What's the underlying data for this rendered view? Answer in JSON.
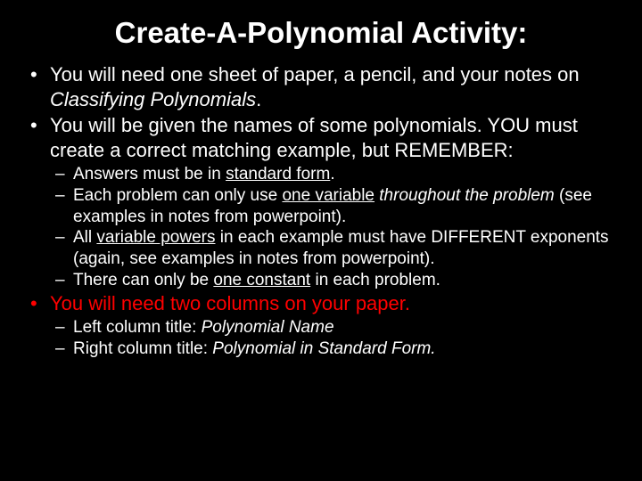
{
  "title": "Create-A-Polynomial Activity:",
  "bullets": {
    "b1_pre": "You will need one sheet of paper, a pencil, and your notes on ",
    "b1_italic": "Classifying Polynomials",
    "b1_post": ".",
    "b2": "You will be given the names of some polynomials. YOU must create a correct matching example, but REMEMBER:",
    "sub1_pre": "Answers must be in ",
    "sub1_u": "standard form",
    "sub1_post": ".",
    "sub2_pre": "Each problem can only use ",
    "sub2_u": "one variable",
    "sub2_mid": " ",
    "sub2_italic": "throughout the problem ",
    "sub2_post": "(see examples in notes from powerpoint).",
    "sub3_pre": "All ",
    "sub3_u": "variable powers",
    "sub3_post": " in each example must have DIFFERENT exponents  (again, see examples in notes from powerpoint).",
    "sub4_pre": "There can only be ",
    "sub4_u": "one constant",
    "sub4_post": " in each problem.",
    "b3": "You will need two columns on your paper.",
    "sub5_pre": "Left column title:  ",
    "sub5_italic": "Polynomial Name",
    "sub6_pre": "Right column title:  ",
    "sub6_italic": "Polynomial in Standard Form."
  },
  "colors": {
    "background": "#000000",
    "text": "#ffffff",
    "highlight": "#ff0000"
  }
}
